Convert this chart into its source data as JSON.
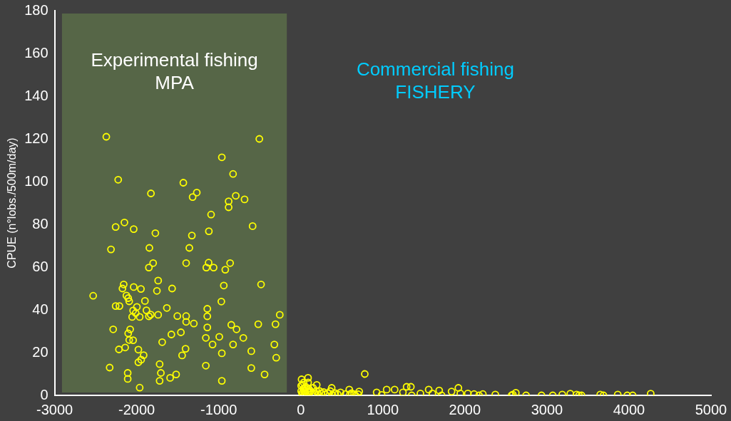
{
  "chart_data": {
    "type": "scatter",
    "ylabel": "CPUE (n°lobs./500m/day)",
    "xlim": [
      -3000,
      5000
    ],
    "xticks": [
      -3000,
      -2000,
      -1000,
      0,
      1000,
      2000,
      3000,
      4000,
      5000
    ],
    "ylim": [
      0,
      180
    ],
    "yticks": [
      0,
      20,
      40,
      60,
      80,
      100,
      120,
      140,
      160,
      180
    ],
    "grid": false,
    "legend": false,
    "marker": "circle",
    "bands": [
      {
        "axis": "x",
        "from": -2910,
        "to": -170,
        "label": "Experimental fishing\nMPA",
        "color": "#566647"
      }
    ],
    "annotations": [
      "Commercial fishing\nFISHERY"
    ],
    "series": [
      {
        "color": "#ffff00",
        "x": [
          -2370,
          -505,
          -962,
          -825,
          -2225,
          -1431,
          -1826,
          -1267,
          -1318,
          -792,
          -879,
          -685,
          -879,
          -1093,
          -2256,
          -2149,
          -2036,
          -1772,
          -1120,
          -1327,
          -587,
          -2313,
          -1845,
          -1358,
          -1799,
          -1851,
          -1397,
          -1123,
          -1151,
          -1062,
          -861,
          -920,
          -1738,
          -1753,
          -1568,
          -2158,
          -2173,
          -2036,
          -1948,
          -2530,
          -2125,
          -2103,
          -2091,
          -1899,
          -938,
          -484,
          -968,
          -2256,
          -2210,
          -1997,
          -2043,
          -2012,
          -2055,
          -1963,
          -1881,
          -1829,
          -1851,
          -1738,
          -1632,
          -1504,
          -1397,
          -1397,
          -1303,
          -1139,
          -1139,
          -1139,
          -256,
          -518,
          -308,
          -847,
          -783,
          -2286,
          -2079,
          -2103,
          -2091,
          -2043,
          -1577,
          -1461,
          -1689,
          -1157,
          -993,
          -700,
          -1075,
          -825,
          -322,
          -2216,
          -2140,
          -1979,
          -1404,
          -1446,
          -1915,
          -1945,
          -1979,
          -962,
          -603,
          -299,
          -1720,
          -2329,
          -2109,
          -2109,
          -1705,
          -1720,
          -1592,
          -1519,
          -1157,
          -603,
          -441,
          -962,
          -1963,
          780,
          89,
          195,
          377,
          386,
          484,
          591,
          712,
          667,
          545,
          925,
          986,
          1047,
          1144,
          1290,
          1342,
          1245,
          1352,
          1458,
          1559,
          1604,
          1687,
          1717,
          1838,
          1921,
          1945,
          2036,
          2112,
          2173,
          2219,
          2371,
          2584,
          2621,
          2569,
          2746,
          2934,
          3071,
          3187,
          3285,
          3361,
          3391,
          3422,
          3650,
          3689,
          3863,
          3979,
          4045,
          4265,
          10,
          20,
          30,
          40,
          50,
          60,
          90,
          100,
          110,
          120,
          150,
          170,
          190,
          210,
          230,
          250,
          280,
          300,
          15,
          25,
          35,
          45,
          55,
          85,
          5,
          5,
          140,
          330,
          360,
          420,
          450,
          620,
          650,
          700,
          600
        ],
        "values": [
          121,
          120,
          111.4,
          103.6,
          100.9,
          99.5,
          94.5,
          94.9,
          92.8,
          93.4,
          90.8,
          91.7,
          88,
          84.6,
          78.8,
          80.9,
          77.8,
          75.9,
          76.8,
          74.8,
          79.2,
          68.3,
          69,
          69,
          61.9,
          59.8,
          61.9,
          62.1,
          59.8,
          59.8,
          61.9,
          58.8,
          53.7,
          48.9,
          50,
          51.9,
          50,
          50.7,
          49.8,
          46.6,
          46.7,
          45.5,
          44,
          44.2,
          51.4,
          51.9,
          43.9,
          41.8,
          41.8,
          41.4,
          39.7,
          38.5,
          36.7,
          36.7,
          39.8,
          37.8,
          37,
          37.7,
          40.9,
          37.1,
          37.1,
          34.4,
          33.6,
          40.5,
          37,
          31.8,
          37.7,
          33.3,
          33.3,
          33,
          30.9,
          30.9,
          30.9,
          29,
          25.9,
          25.8,
          28.5,
          29.5,
          24.9,
          26.9,
          27.4,
          26.9,
          23.8,
          23.8,
          23.8,
          21.5,
          22.4,
          21.4,
          21.8,
          18.7,
          18.8,
          16.7,
          15.5,
          19.7,
          20.7,
          17.6,
          14.6,
          13,
          10.5,
          7.7,
          10.5,
          6.8,
          8.2,
          9.8,
          13.9,
          12.8,
          9.8,
          6.8,
          3.6,
          10,
          8.2,
          4.9,
          3.5,
          0.2,
          1.4,
          2.7,
          1.8,
          0,
          0.6,
          1.4,
          0.2,
          2.7,
          2.7,
          4,
          4,
          1.4,
          0,
          0.9,
          2.7,
          0.9,
          2.3,
          0,
          1.8,
          3.5,
          0.9,
          0.9,
          0.6,
          0,
          0.6,
          0.4,
          0.4,
          1.2,
          0,
          0,
          0,
          0,
          0.4,
          0.8,
          0.4,
          0,
          0,
          0.4,
          0,
          0.4,
          0,
          0,
          0.8,
          7.5,
          5,
          3,
          2,
          1,
          4,
          6,
          3,
          1.5,
          2,
          3.5,
          1,
          2,
          0.5,
          2,
          1,
          1.5,
          0.5,
          1,
          0.5,
          6,
          3.5,
          2,
          1.5,
          2,
          4.5,
          1,
          1,
          2,
          1,
          0.5,
          1,
          0.5,
          0.5,
          0.5
        ]
      }
    ]
  }
}
